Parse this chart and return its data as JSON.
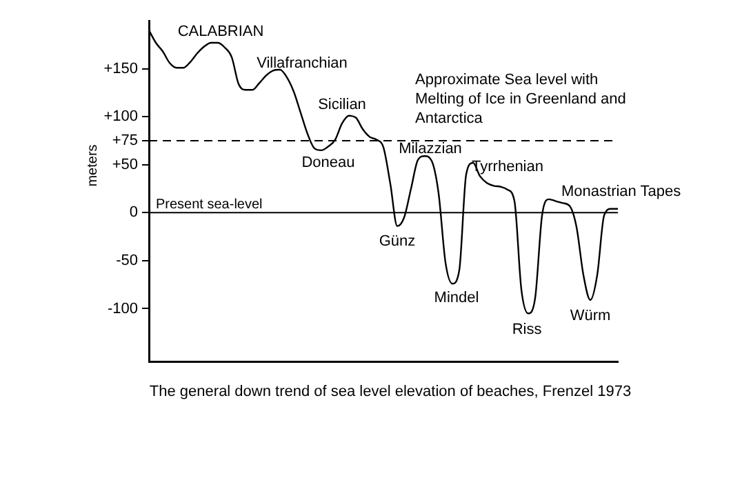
{
  "chart_data": {
    "type": "line",
    "ylabel": "meters",
    "categories": [
      null,
      null,
      null,
      null,
      null,
      null,
      null,
      null,
      null,
      null,
      null,
      null,
      null,
      null,
      null,
      null,
      null,
      null,
      null,
      null,
      null,
      null,
      null,
      null,
      null,
      null,
      null,
      null,
      null,
      null,
      null,
      null,
      null,
      null,
      null,
      null,
      null,
      null,
      null,
      null,
      null,
      null,
      null,
      null,
      null,
      null,
      null,
      null,
      null,
      null,
      null,
      null,
      null,
      null,
      null,
      null,
      null,
      null,
      null,
      null,
      null,
      null,
      null,
      null,
      null,
      null,
      null,
      null,
      null
    ],
    "series": [
      {
        "color": "#000000",
        "values": [
          190,
          177,
          168,
          156,
          151,
          151,
          157,
          166,
          173,
          177,
          177,
          172,
          162,
          134,
          128,
          128,
          135,
          143,
          148,
          149,
          141,
          126,
          104,
          82,
          67,
          65,
          69,
          76,
          93,
          101,
          99,
          87,
          79,
          76,
          68,
          30,
          -14,
          -5,
          25,
          55,
          59,
          54,
          20,
          -52,
          -74,
          -60,
          40,
          52,
          38,
          31,
          28,
          27,
          24,
          12,
          -80,
          -105,
          -89,
          -3,
          14,
          12,
          10,
          7,
          -15,
          -65,
          -91,
          -65,
          -3,
          4,
          4
        ]
      }
    ],
    "ylim": [
      -155,
      200
    ],
    "yticks": [
      {
        "value": 150,
        "label": "+150"
      },
      {
        "value": 100,
        "label": "+100"
      },
      {
        "value": 75,
        "label": "+75"
      },
      {
        "value": 50,
        "label": "+50"
      },
      0,
      -50,
      -100
    ],
    "tick_labels": "y",
    "grid": false,
    "legend": false,
    "marker": "none",
    "line_style": "solid",
    "ref_lines": [
      {
        "axis": "y",
        "value": 75,
        "line_style": "dashed",
        "color": "#000000"
      },
      {
        "axis": "y",
        "value": 0,
        "label": "Present sea-level",
        "line_style": "solid",
        "color": "#000000"
      }
    ],
    "annotations": [
      "CALABRIAN",
      "Villafranchian",
      "Sicilian",
      "Doneau",
      "Approximate Sea level with Melting of Ice in Greenland and Antarctica",
      "Milazzian",
      "Günz",
      "Tyrrhenian",
      "Mindel",
      "Monastrian Tapes",
      "Riss",
      "Würm",
      "The general down trend of sea level elevation of beaches, Frenzel 1973"
    ]
  }
}
